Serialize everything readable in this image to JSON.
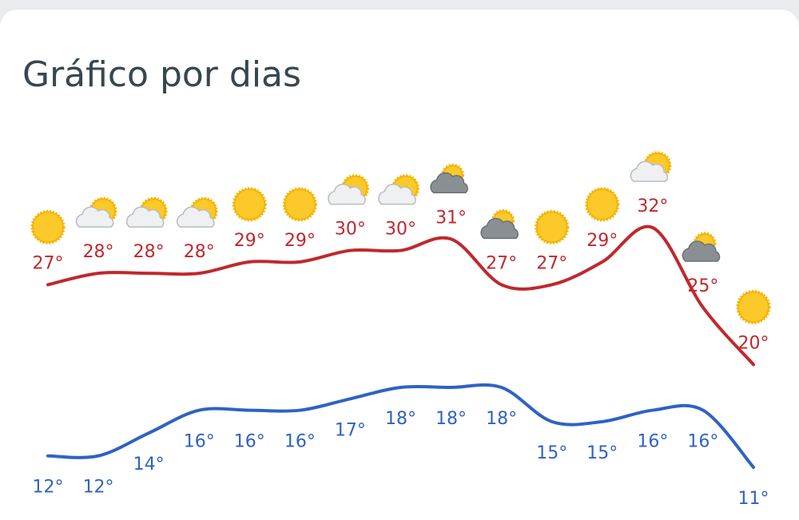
{
  "chart_data": {
    "type": "line",
    "title": "Gráfico por dias",
    "categories": [
      null,
      null,
      null,
      null,
      null,
      null,
      null,
      null,
      null,
      null,
      null,
      null,
      null,
      null,
      null
    ],
    "series": [
      {
        "color": "#c0282d",
        "values": [
          27,
          28,
          28,
          28,
          29,
          29,
          30,
          30,
          31,
          27,
          27,
          29,
          32,
          25,
          20
        ],
        "value_labels": [
          "27°",
          "28°",
          "28°",
          "28°",
          "29°",
          "29°",
          "30°",
          "30°",
          "31°",
          "27°",
          "27°",
          "29°",
          "32°",
          "25°",
          "20°"
        ]
      },
      {
        "color": "#2f62c4",
        "values": [
          12,
          12,
          14,
          16,
          16,
          16,
          17,
          18,
          18,
          18,
          15,
          15,
          16,
          16,
          11
        ],
        "value_labels": [
          "12°",
          "12°",
          "14°",
          "16°",
          "16°",
          "16°",
          "17°",
          "18°",
          "18°",
          "18°",
          "15°",
          "15°",
          "16°",
          "16°",
          "11°"
        ]
      }
    ]
  }
}
